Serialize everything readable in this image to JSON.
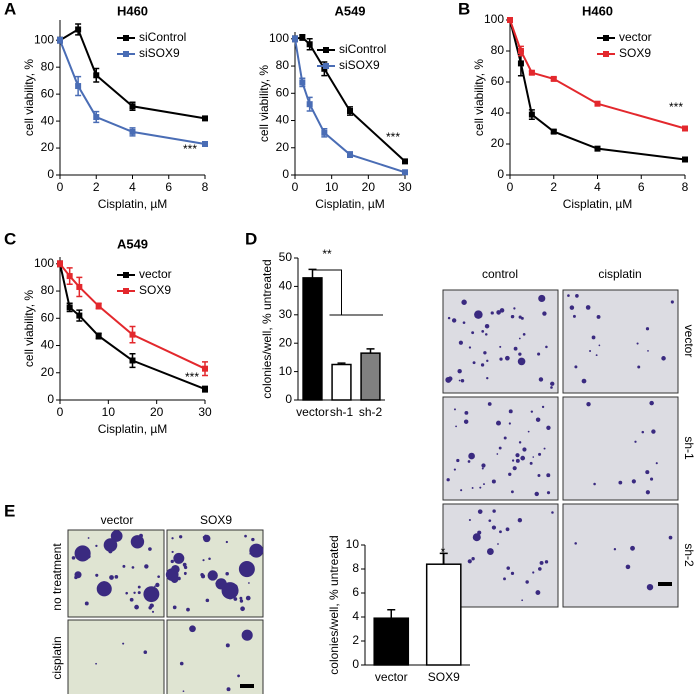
{
  "panel_labels": [
    "A",
    "B",
    "C",
    "D",
    "E"
  ],
  "chart_data": [
    {
      "type": "line",
      "title": "H460",
      "x_label": "Cisplatin, µM",
      "y_label": "cell viability, %",
      "annotation": "***",
      "x": [
        0,
        1,
        2,
        4,
        8
      ],
      "xlim": [
        0,
        8
      ],
      "xticks": [
        0,
        2,
        4,
        6,
        8
      ],
      "ylim": [
        0,
        115
      ],
      "yticks": [
        0,
        20,
        40,
        60,
        80,
        100
      ],
      "legend": "upper right",
      "series": [
        {
          "name": "siControl",
          "color": "#000000",
          "values": [
            100,
            108,
            74,
            51,
            42
          ],
          "errors": [
            2,
            4,
            5,
            3,
            1
          ]
        },
        {
          "name": "siSOX9",
          "color": "#4a6db5",
          "values": [
            100,
            66,
            43,
            32,
            23
          ],
          "errors": [
            2,
            7,
            4,
            3,
            1
          ]
        }
      ]
    },
    {
      "type": "line",
      "title": "A549",
      "x_label": "Cisplatin, µM",
      "y_label": "cell viability, %",
      "annotation": "***",
      "x": [
        0,
        2,
        4,
        8,
        15,
        30
      ],
      "xlim": [
        0,
        30
      ],
      "xticks": [
        0,
        10,
        20,
        30
      ],
      "ylim": [
        0,
        105
      ],
      "yticks": [
        0,
        20,
        40,
        60,
        80,
        100
      ],
      "legend": "upper right",
      "series": [
        {
          "name": "siControl",
          "color": "#000000",
          "values": [
            100,
            101,
            96,
            78,
            47,
            10
          ],
          "errors": [
            2,
            2,
            4,
            5,
            3,
            1
          ]
        },
        {
          "name": "siSOX9",
          "color": "#4a6db5",
          "values": [
            100,
            68,
            52,
            31,
            15,
            2
          ],
          "errors": [
            2,
            3,
            5,
            3,
            2,
            1
          ]
        }
      ]
    },
    {
      "type": "line",
      "title": "H460",
      "x_label": "Cisplatin, µM",
      "y_label": "cell viability, %",
      "annotation": "***",
      "x": [
        0,
        0.5,
        1,
        2,
        4,
        8
      ],
      "xlim": [
        0,
        8
      ],
      "xticks": [
        0,
        2,
        4,
        6,
        8
      ],
      "ylim": [
        0,
        100
      ],
      "yticks": [
        0,
        20,
        40,
        60,
        80,
        100
      ],
      "legend": "upper right",
      "series": [
        {
          "name": "vector",
          "color": "#000000",
          "values": [
            100,
            72,
            39,
            28,
            17,
            10
          ],
          "errors": [
            1,
            8,
            3,
            1,
            1,
            1
          ]
        },
        {
          "name": "SOX9",
          "color": "#e3282d",
          "values": [
            100,
            80,
            66,
            62,
            46,
            30
          ],
          "errors": [
            1,
            3,
            1,
            1,
            1,
            1
          ]
        }
      ]
    },
    {
      "type": "line",
      "title": "A549",
      "x_label": "Cisplatin, µM",
      "y_label": "cell viability, %",
      "annotation": "***",
      "x": [
        0,
        2,
        4,
        8,
        15,
        30
      ],
      "xlim": [
        0,
        30
      ],
      "xticks": [
        0,
        10,
        20,
        30
      ],
      "ylim": [
        0,
        105
      ],
      "yticks": [
        0,
        20,
        40,
        60,
        80,
        100
      ],
      "legend": "upper right",
      "series": [
        {
          "name": "vector",
          "color": "#000000",
          "values": [
            100,
            68,
            62,
            47,
            29,
            8
          ],
          "errors": [
            2,
            3,
            4,
            2,
            5,
            2
          ]
        },
        {
          "name": "SOX9",
          "color": "#e3282d",
          "values": [
            100,
            91,
            83,
            69,
            48,
            23
          ],
          "errors": [
            2,
            6,
            7,
            2,
            6,
            5
          ]
        }
      ]
    },
    {
      "type": "bar",
      "y_label": "colonies/well, % untreated",
      "annotation": "**",
      "categories": [
        "vector",
        "sh-1",
        "sh-2"
      ],
      "values": [
        43,
        12.5,
        16.5
      ],
      "errors": [
        3,
        0.5,
        1.5
      ],
      "colors": [
        "#000000",
        "#ffffff",
        "#808080"
      ],
      "ylim": [
        0,
        50
      ],
      "yticks": [
        0,
        10,
        20,
        30,
        40,
        50
      ]
    },
    {
      "type": "bar",
      "y_label": "colonies/well, % untreated",
      "annotation": "*",
      "categories": [
        "vector",
        "SOX9"
      ],
      "values": [
        3.9,
        8.4
      ],
      "errors": [
        0.7,
        0.9
      ],
      "colors": [
        "#000000",
        "#ffffff"
      ],
      "ylim": [
        0,
        10
      ],
      "yticks": [
        0,
        2,
        4,
        6,
        8,
        10
      ]
    }
  ],
  "panel_d_images": {
    "columns": [
      "control",
      "cisplatin"
    ],
    "rows": [
      "vector",
      "sh-1",
      "sh-2"
    ]
  },
  "panel_e_images": {
    "columns": [
      "vector",
      "SOX9"
    ],
    "rows": [
      "no treatment",
      "cisplatin"
    ]
  }
}
